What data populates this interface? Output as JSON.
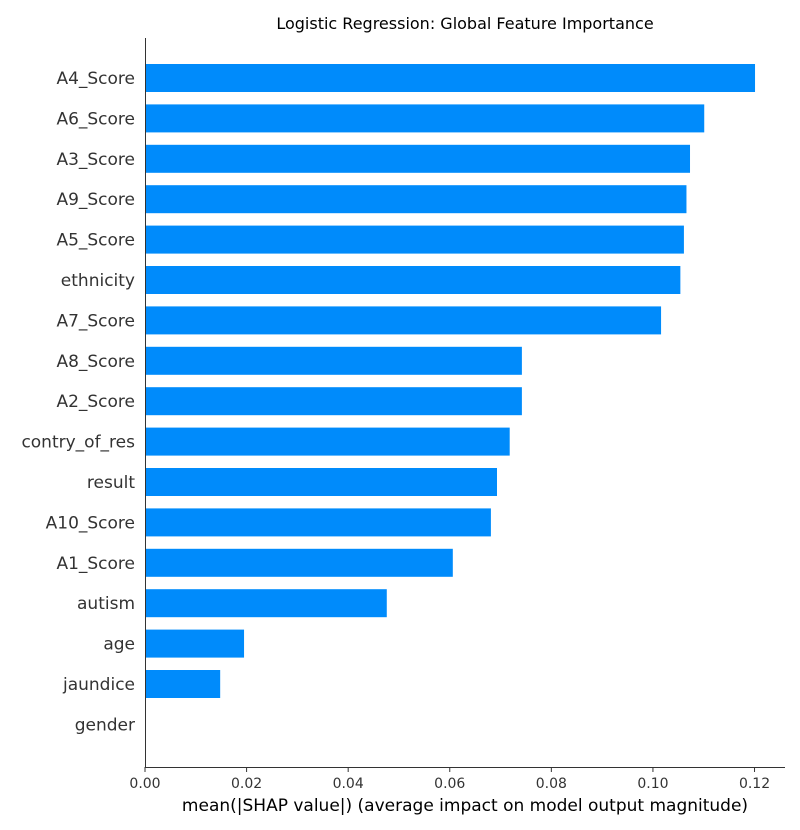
{
  "chart_data": {
    "type": "bar",
    "orientation": "horizontal",
    "title": "Logistic Regression: Global Feature Importance",
    "xlabel": "mean(|SHAP value|) (average impact on model output magnitude)",
    "ylabel": "",
    "xlim": [
      0.0,
      0.126
    ],
    "xticks": [
      0.0,
      0.02,
      0.04,
      0.06,
      0.08,
      0.1,
      0.12
    ],
    "xtick_labels": [
      "0.00",
      "0.02",
      "0.04",
      "0.06",
      "0.08",
      "0.10",
      "0.12"
    ],
    "categories": [
      "A4_Score",
      "A6_Score",
      "A3_Score",
      "A9_Score",
      "A5_Score",
      "ethnicity",
      "A7_Score",
      "A8_Score",
      "A2_Score",
      "contry_of_res",
      "result",
      "A10_Score",
      "A1_Score",
      "autism",
      "age",
      "jaundice",
      "gender"
    ],
    "values": [
      0.1201,
      0.1101,
      0.1073,
      0.1066,
      0.1061,
      0.1054,
      0.1016,
      0.0742,
      0.0742,
      0.0718,
      0.0693,
      0.0681,
      0.0606,
      0.0476,
      0.0195,
      0.0148,
      0.0
    ],
    "bar_color": "#008bfb",
    "grid": false
  }
}
